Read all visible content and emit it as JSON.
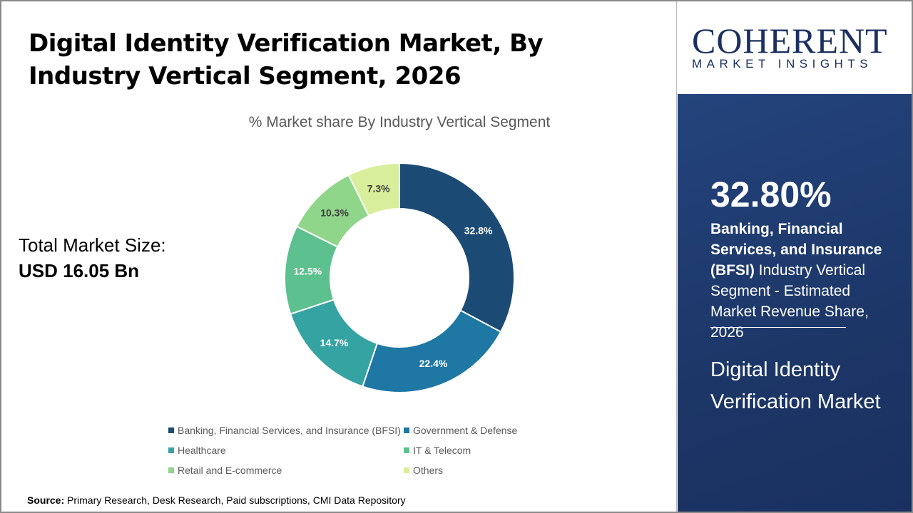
{
  "header": {
    "title": "Digital Identity Verification Market, By Industry Vertical Segment, 2026"
  },
  "total": {
    "label": "Total Market Size:",
    "value": "USD 16.05 Bn"
  },
  "source": {
    "label": "Source:",
    "text": " Primary Research, Desk Research, Paid subscriptions, CMI Data Repository"
  },
  "logo": {
    "name": "COHERENT",
    "tagline": "MARKET INSIGHTS"
  },
  "panel": {
    "percent": "32.80%",
    "segment_bold": "Banking, Financial Services, and Insurance (BFSI)",
    "segment_rest": " Industry Vertical Segment - Estimated Market Revenue Share, 2026",
    "market": "Digital Identity Verification Market"
  },
  "chart_data": {
    "type": "pie",
    "donut": true,
    "title": "% Market share By Industry Vertical Segment",
    "categories": [
      "Banking, Financial Services, and Insurance (BFSI)",
      "Government & Defense",
      "Healthcare",
      "IT & Telecom",
      "Retail and E-commerce",
      "Others"
    ],
    "values": [
      32.8,
      22.4,
      14.7,
      12.5,
      10.3,
      7.3
    ],
    "labels": [
      "32.8%",
      "22.4%",
      "14.7%",
      "12.5%",
      "10.3%",
      "7.3%"
    ],
    "colors": [
      "#1b4b74",
      "#1f77a3",
      "#36a3a3",
      "#5dc08f",
      "#8fd58a",
      "#d8ee9a"
    ],
    "legend": "bottom"
  }
}
